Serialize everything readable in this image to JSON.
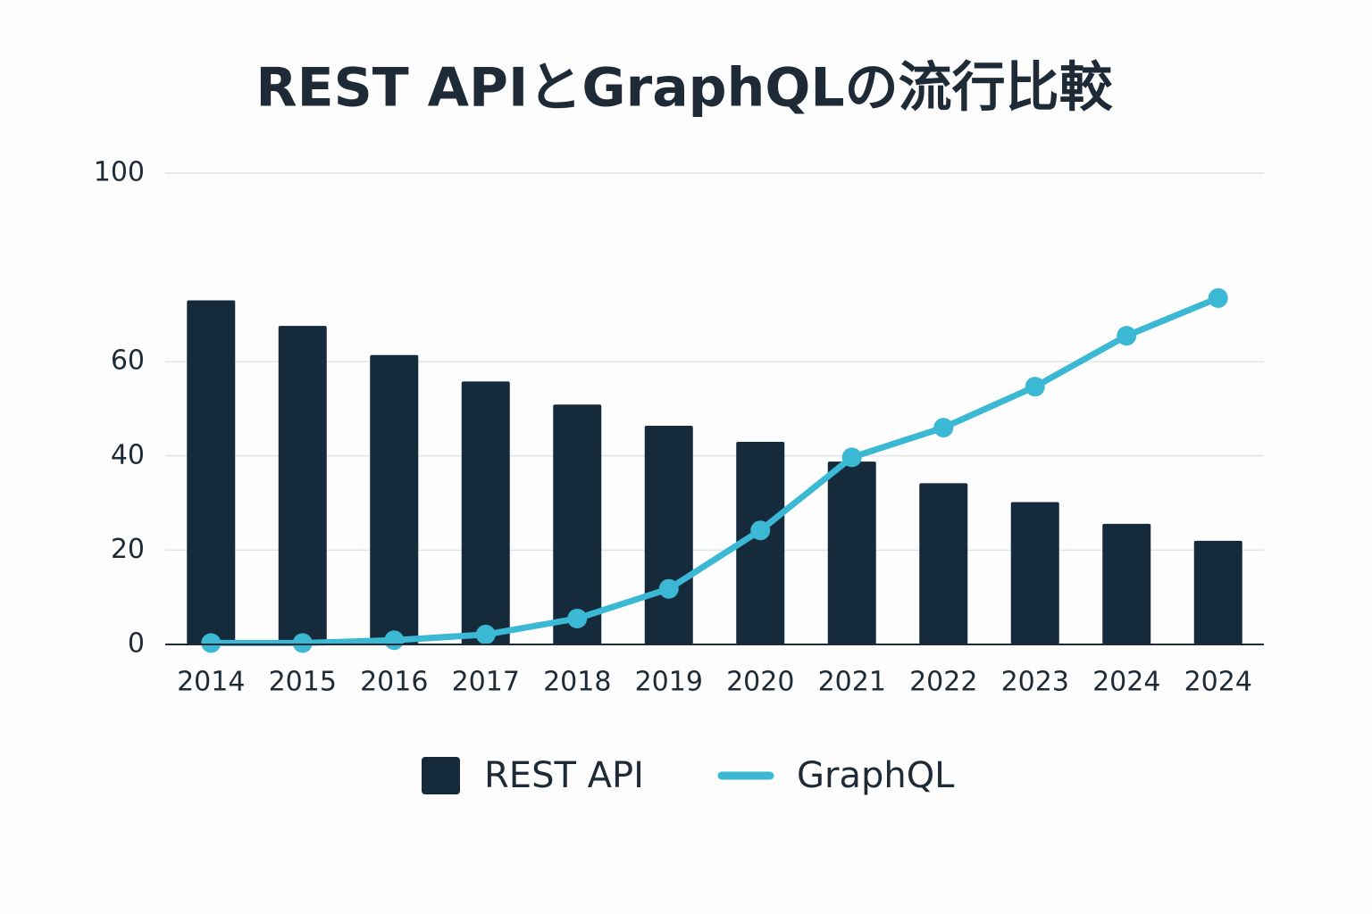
{
  "chart_data": {
    "type": "bar-line",
    "title": "REST APIとGraphQLの流行比較",
    "categories": [
      "2014",
      "2015",
      "2016",
      "2017",
      "2018",
      "2019",
      "2020",
      "2021",
      "2022",
      "2023",
      "2024",
      "2024"
    ],
    "series": [
      {
        "name": "REST API",
        "type": "bar",
        "color": "#152b3c",
        "values": [
          73,
          67.6,
          61.4,
          55.8,
          50.9,
          46.4,
          43,
          38.8,
          34.2,
          30.2,
          25.6,
          22
        ]
      },
      {
        "name": "GraphQL",
        "type": "line",
        "color": "#3bb8d4",
        "values": [
          0.3,
          0.3,
          0.9,
          2.1,
          5.5,
          11.8,
          24.2,
          39.7,
          46,
          54.7,
          65.5,
          73.5
        ]
      }
    ],
    "ylim": [
      0,
      100
    ],
    "yticks": [
      0,
      20,
      40,
      60,
      100
    ],
    "grid": true,
    "legend": "bottom"
  }
}
